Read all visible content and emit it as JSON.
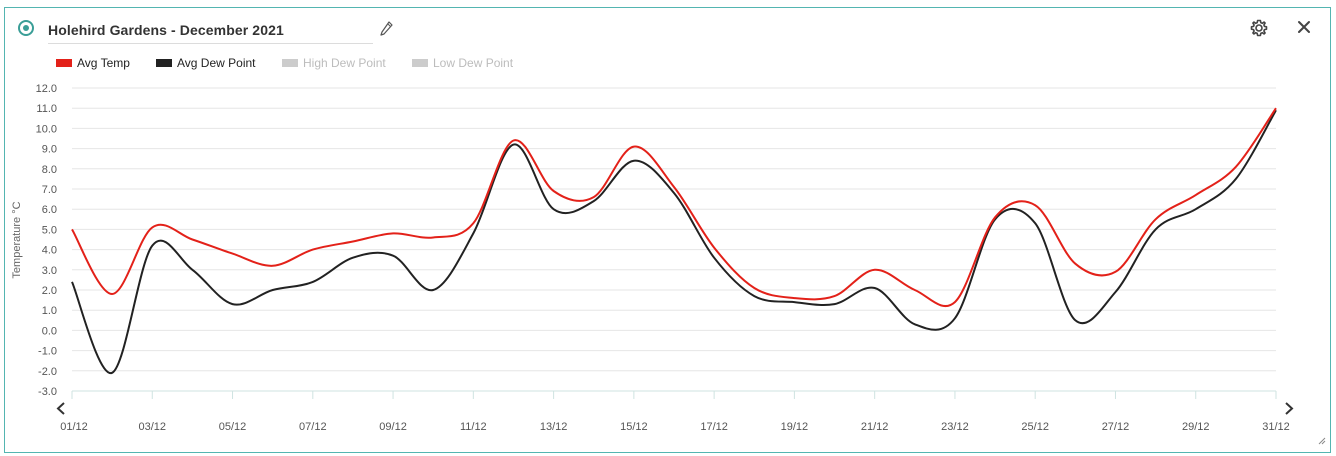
{
  "header": {
    "title": "Holehird Gardens - December 2021",
    "edit_icon": "pencil-icon",
    "settings_icon": "gear-icon",
    "close_icon": "close-icon",
    "status_icon": "radio-dot-icon"
  },
  "legend": [
    {
      "label": "Avg Temp",
      "color": "#e32119",
      "active": true
    },
    {
      "label": "Avg Dew Point",
      "color": "#222222",
      "active": true
    },
    {
      "label": "High Dew Point",
      "color": "#cccccc",
      "active": false
    },
    {
      "label": "Low Dew Point",
      "color": "#cccccc",
      "active": false
    }
  ],
  "nav": {
    "prev_icon": "chevron-left-icon",
    "next_icon": "chevron-right-icon"
  },
  "chart_data": {
    "type": "line",
    "ylabel": "Temperature °C",
    "ylim": [
      -3.0,
      12.0
    ],
    "yticks": [
      "12.0",
      "11.0",
      "10.0",
      "9.0",
      "8.0",
      "7.0",
      "6.0",
      "5.0",
      "4.0",
      "3.0",
      "2.0",
      "1.0",
      "0.0",
      "-1.0",
      "-2.0",
      "-3.0"
    ],
    "xlabels": [
      "01/12",
      "03/12",
      "05/12",
      "07/12",
      "09/12",
      "11/12",
      "13/12",
      "15/12",
      "17/12",
      "19/12",
      "21/12",
      "23/12",
      "25/12",
      "27/12",
      "29/12",
      "31/12"
    ],
    "grid": true,
    "series": [
      {
        "name": "Avg Temp",
        "color": "#e32119",
        "x": [
          "01/12",
          "02/12",
          "03/12",
          "04/12",
          "05/12",
          "06/12",
          "07/12",
          "08/12",
          "09/12",
          "10/12",
          "11/12",
          "12/12",
          "13/12",
          "14/12",
          "15/12",
          "16/12",
          "17/12",
          "18/12",
          "19/12",
          "20/12",
          "21/12",
          "22/12",
          "23/12",
          "24/12",
          "25/12",
          "26/12",
          "27/12",
          "28/12",
          "29/12",
          "30/12",
          "31/12"
        ],
        "values": [
          5.0,
          1.8,
          5.1,
          4.5,
          3.8,
          3.2,
          4.0,
          4.4,
          4.8,
          4.6,
          5.3,
          9.4,
          6.9,
          6.6,
          9.1,
          7.1,
          4.1,
          2.1,
          1.6,
          1.7,
          3.0,
          2.0,
          1.4,
          5.6,
          6.2,
          3.3,
          2.9,
          5.5,
          6.7,
          8.1,
          11.0
        ]
      },
      {
        "name": "Avg Dew Point",
        "color": "#222222",
        "x": [
          "01/12",
          "02/12",
          "03/12",
          "04/12",
          "05/12",
          "06/12",
          "07/12",
          "08/12",
          "09/12",
          "10/12",
          "11/12",
          "12/12",
          "13/12",
          "14/12",
          "15/12",
          "16/12",
          "17/12",
          "18/12",
          "19/12",
          "20/12",
          "21/12",
          "22/12",
          "23/12",
          "24/12",
          "25/12",
          "26/12",
          "27/12",
          "28/12",
          "29/12",
          "30/12",
          "31/12"
        ],
        "values": [
          2.4,
          -2.1,
          4.2,
          3.0,
          1.3,
          2.0,
          2.4,
          3.6,
          3.7,
          2.0,
          4.8,
          9.2,
          6.0,
          6.4,
          8.4,
          6.8,
          3.6,
          1.7,
          1.4,
          1.3,
          2.1,
          0.3,
          0.6,
          5.5,
          5.3,
          0.5,
          1.9,
          5.0,
          6.0,
          7.5,
          10.9
        ]
      }
    ]
  }
}
